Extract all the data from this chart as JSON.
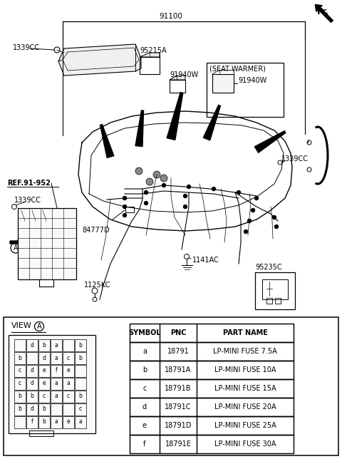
{
  "bg_color": "#ffffff",
  "line_color": "#000000",
  "part_number_top": "91100",
  "fr_label": "Fr.",
  "table_headers": [
    "SYMBOL",
    "PNC",
    "PART NAME"
  ],
  "table_rows": [
    [
      "a",
      "18791",
      "LP-MINI FUSE 7.5A"
    ],
    [
      "b",
      "18791A",
      "LP-MINI FUSE 10A"
    ],
    [
      "c",
      "18791B",
      "LP-MINI FUSE 15A"
    ],
    [
      "d",
      "18791C",
      "LP-MINI FUSE 20A"
    ],
    [
      "e",
      "18791D",
      "LP-MINI FUSE 25A"
    ],
    [
      "f",
      "18791E",
      "LP-MINI FUSE 30A"
    ]
  ],
  "view_label": "VIEW",
  "fuse_grid_rows": [
    [
      "",
      "d",
      "b",
      "a",
      "",
      "b"
    ],
    [
      "b",
      "",
      "d",
      "a",
      "c",
      "b"
    ],
    [
      "c",
      "d",
      "e",
      "f",
      "e",
      ""
    ],
    [
      "c",
      "d",
      "e",
      "a",
      "a",
      ""
    ],
    [
      "b",
      "b",
      "c",
      "a",
      "c",
      "b"
    ],
    [
      "b",
      "d",
      "b",
      "",
      "",
      "c"
    ],
    [
      "",
      "f",
      "b",
      "a",
      "e",
      "a"
    ]
  ]
}
